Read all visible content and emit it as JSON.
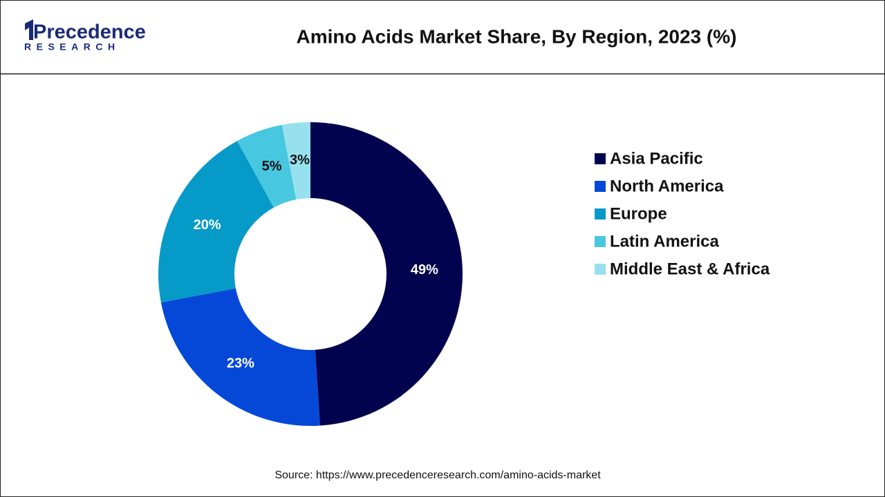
{
  "logo": {
    "name": "Precedence",
    "tagline": "RESEARCH"
  },
  "chart_data": {
    "type": "donut",
    "title": "Amino Acids Market Share, By Region, 2023 (%)",
    "categories": [
      "Asia Pacific",
      "North America",
      "Europe",
      "Latin America",
      "Middle East & Africa"
    ],
    "values": [
      49,
      23,
      20,
      5,
      3
    ],
    "value_labels": [
      "49%",
      "23%",
      "20%",
      "5%",
      "3%"
    ],
    "colors": [
      "#02034f",
      "#0548d8",
      "#069ac8",
      "#48c7e0",
      "#97e1ee"
    ],
    "legend": "right"
  },
  "source": "Source: https://www.precedenceresearch.com/amino-acids-market"
}
